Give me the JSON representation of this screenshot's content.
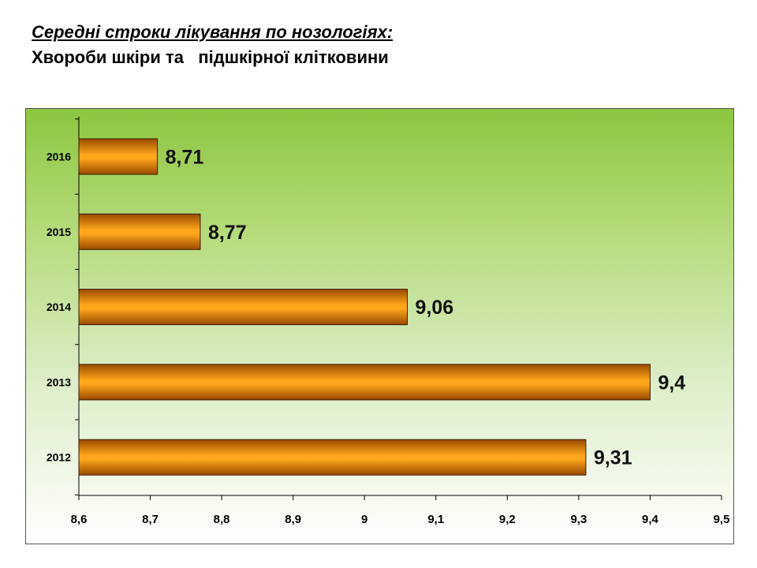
{
  "header": {
    "title": "Середні строки лікування по нозологіях:",
    "subtitle": "Хвороби шкіри та   підшкірної клітковини"
  },
  "colors": {
    "bar_light": "#ffa71c",
    "bar_dark": "#9a4a00",
    "background_top": "#8cc63f",
    "background_bottom": "#ffffff"
  },
  "chart_data": {
    "type": "bar",
    "orientation": "horizontal",
    "categories": [
      "2016",
      "2015",
      "2014",
      "2013",
      "2012"
    ],
    "values": [
      8.71,
      8.77,
      9.06,
      9.4,
      9.31
    ],
    "data_labels": [
      "8,71",
      "8,77",
      "9,06",
      "9,4",
      "9,31"
    ],
    "xlim": [
      8.6,
      9.5
    ],
    "x_ticks": [
      8.6,
      8.7,
      8.8,
      8.9,
      9.0,
      9.1,
      9.2,
      9.3,
      9.4,
      9.5
    ],
    "x_tick_labels": [
      "8,6",
      "8,7",
      "8,8",
      "8,9",
      "9",
      "9,1",
      "9,2",
      "9,3",
      "9,4",
      "9,5"
    ],
    "grid": false,
    "legend": "none"
  }
}
